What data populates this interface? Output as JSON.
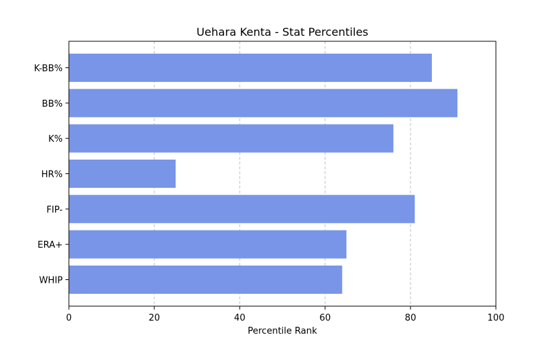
{
  "chart_data": {
    "type": "bar",
    "orientation": "horizontal",
    "title": "Uehara Kenta - Stat Percentiles",
    "xlabel": "Percentile Rank",
    "ylabel": "",
    "xlim": [
      0,
      100
    ],
    "xticks": [
      0,
      20,
      40,
      60,
      80,
      100
    ],
    "grid": "x-dashed",
    "bar_color": "#7895e8",
    "categories": [
      "K-BB%",
      "BB%",
      "K%",
      "HR%",
      "FIP-",
      "ERA+",
      "WHIP"
    ],
    "values": [
      85,
      91,
      76,
      25,
      81,
      65,
      64
    ]
  }
}
